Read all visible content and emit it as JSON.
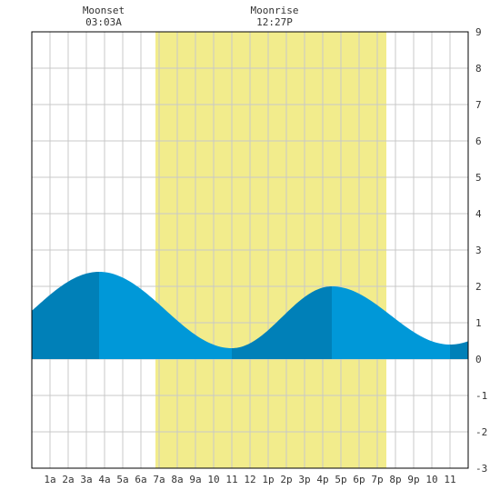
{
  "chart_data": {
    "type": "area",
    "title": "",
    "xlabel": "",
    "ylabel": "",
    "xlim": [
      0,
      24
    ],
    "ylim": [
      -3,
      9
    ],
    "y_ticks": [
      -3,
      -2,
      -1,
      0,
      1,
      2,
      3,
      4,
      5,
      6,
      7,
      8,
      9
    ],
    "x_tick_labels": [
      "1a",
      "2a",
      "3a",
      "4a",
      "5a",
      "6a",
      "7a",
      "8a",
      "9a",
      "10",
      "11",
      "12",
      "1p",
      "2p",
      "3p",
      "4p",
      "5p",
      "6p",
      "7p",
      "8p",
      "9p",
      "10",
      "11"
    ],
    "grid": true,
    "daylight": {
      "start_hour": 6.8,
      "end_hour": 19.5
    },
    "moon_events": [
      {
        "label": "Moonset",
        "time": "03:03A",
        "hour": 3.05
      },
      {
        "label": "Moonrise",
        "time": "12:27P",
        "hour": 12.45
      }
    ],
    "tide_extremes": [
      {
        "hour": 3.7,
        "height": 2.4,
        "kind": "high"
      },
      {
        "hour": 11.0,
        "height": 0.3,
        "kind": "low"
      },
      {
        "hour": 16.5,
        "height": 2.0,
        "kind": "high"
      },
      {
        "hour": 23.0,
        "height": 0.4,
        "kind": "low"
      }
    ],
    "tide_start_height": 1.0,
    "tide_end_height": 0.5,
    "colors": {
      "daylight": "#f2ec8c",
      "tide_light": "#0098d8",
      "tide_dark": "#0080b8",
      "grid": "#c8c8c8",
      "axis": "#000000"
    }
  }
}
